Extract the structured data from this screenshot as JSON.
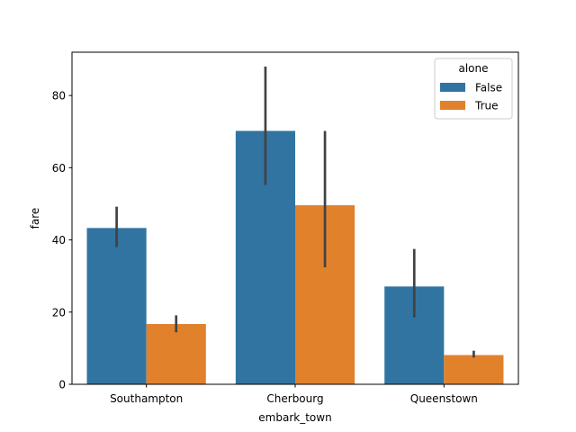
{
  "chart_data": {
    "type": "bar",
    "title": "",
    "xlabel": "embark_town",
    "ylabel": "fare",
    "categories": [
      "Southampton",
      "Cherbourg",
      "Queenstown"
    ],
    "ylim": [
      0,
      92
    ],
    "yticks": [
      0,
      20,
      40,
      60,
      80
    ],
    "grid": false,
    "legend": {
      "title": "alone",
      "placement": "top-right"
    },
    "series": [
      {
        "name": "False",
        "color": "#3274a1",
        "values": [
          43.3,
          70.2,
          27.1
        ],
        "ci_low": [
          38.0,
          55.2,
          18.5
        ],
        "ci_high": [
          49.2,
          88.0,
          37.5
        ]
      },
      {
        "name": "True",
        "color": "#e1812c",
        "values": [
          16.7,
          49.6,
          8.1
        ],
        "ci_low": [
          14.4,
          32.4,
          7.4
        ],
        "ci_high": [
          19.1,
          70.2,
          9.3
        ]
      }
    ]
  }
}
